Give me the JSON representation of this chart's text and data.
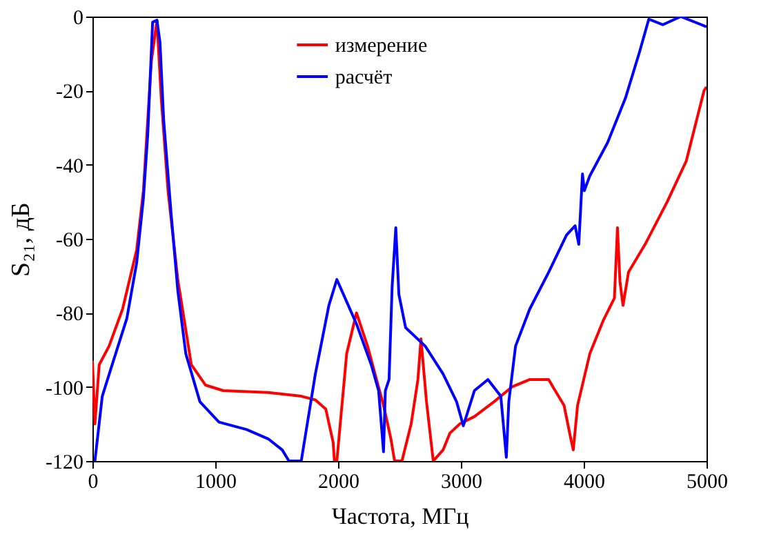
{
  "chart_data": {
    "type": "line",
    "xlabel": "Частота, МГц",
    "ylabel": "S₂₁, дБ",
    "xlim": [
      0,
      5000
    ],
    "ylim": [
      -120,
      0
    ],
    "xticks": [
      0,
      1000,
      2000,
      3000,
      4000,
      5000
    ],
    "yticks": [
      -120,
      -100,
      -80,
      -60,
      -40,
      -20,
      0
    ],
    "grid": false,
    "legend": "top",
    "line_style": "solid",
    "marker": "none",
    "series": [
      {
        "name": "измерение",
        "color": "#ff0000",
        "x": [
          0,
          20,
          55,
          135,
          245,
          360,
          415,
          450,
          480,
          525,
          560,
          615,
          695,
          805,
          920,
          1065,
          1430,
          1700,
          1815,
          1900,
          1960,
          1970,
          1990,
          2070,
          2150,
          2240,
          2370,
          2430,
          2460,
          2520,
          2595,
          2650,
          2675,
          2720,
          2775,
          2855,
          2910,
          2990,
          3110,
          3270,
          3415,
          3560,
          3715,
          3750,
          3840,
          3895,
          3915,
          3950,
          4050,
          4160,
          4250,
          4275,
          4295,
          4320,
          4365,
          4500,
          4680,
          4835,
          4980,
          5000
        ],
        "values": [
          -93,
          -110,
          -94,
          -89,
          -79,
          -63,
          -47,
          -28,
          -12,
          -1,
          -22,
          -47,
          -71,
          -94,
          -99.5,
          -101,
          -101.5,
          -102.5,
          -103.5,
          -106,
          -115,
          -120,
          -120,
          -91,
          -80,
          -89,
          -105,
          -114,
          -120,
          -120,
          -110,
          -98,
          -87,
          -104,
          -120,
          -117,
          -112.5,
          -110,
          -108,
          -104,
          -100,
          -98,
          -98,
          -100,
          -105,
          -114,
          -117,
          -105,
          -91,
          -82,
          -76,
          -57,
          -71.5,
          -78,
          -69,
          -61.5,
          -50,
          -39,
          -20,
          -19
        ]
      },
      {
        "name": "расчёт",
        "color": "#0000ff",
        "x": [
          20,
          80,
          170,
          280,
          360,
          415,
          450,
          480,
          490,
          525,
          550,
          580,
          640,
          695,
          760,
          875,
          1030,
          1255,
          1430,
          1545,
          1600,
          1700,
          1815,
          1925,
          1990,
          2150,
          2270,
          2330,
          2370,
          2385,
          2415,
          2440,
          2470,
          2495,
          2550,
          2710,
          2855,
          2965,
          3020,
          3110,
          3220,
          3325,
          3370,
          3390,
          3445,
          3560,
          3715,
          3860,
          3930,
          3960,
          3990,
          4005,
          4050,
          4195,
          4340,
          4455,
          4530,
          4645,
          4790,
          4980,
          5000
        ],
        "values": [
          -120,
          -102.5,
          -93,
          -81.5,
          -66.5,
          -49,
          -32,
          -9,
          -1.5,
          -1,
          -7,
          -28,
          -53,
          -74,
          -91,
          -104,
          -109.5,
          -111.5,
          -114,
          -117,
          -120,
          -120,
          -96.5,
          -78,
          -71,
          -83,
          -94,
          -101,
          -117.5,
          -101,
          -98,
          -73,
          -57,
          -75,
          -84,
          -89,
          -96.5,
          -104,
          -110.5,
          -101,
          -98,
          -102.5,
          -119,
          -104,
          -89,
          -79,
          -69,
          -59,
          -56.5,
          -61.5,
          -42.5,
          -47,
          -43,
          -34,
          -22,
          -9.5,
          -0.7,
          -2.2,
          0,
          -2.5,
          -2.8
        ]
      }
    ]
  }
}
